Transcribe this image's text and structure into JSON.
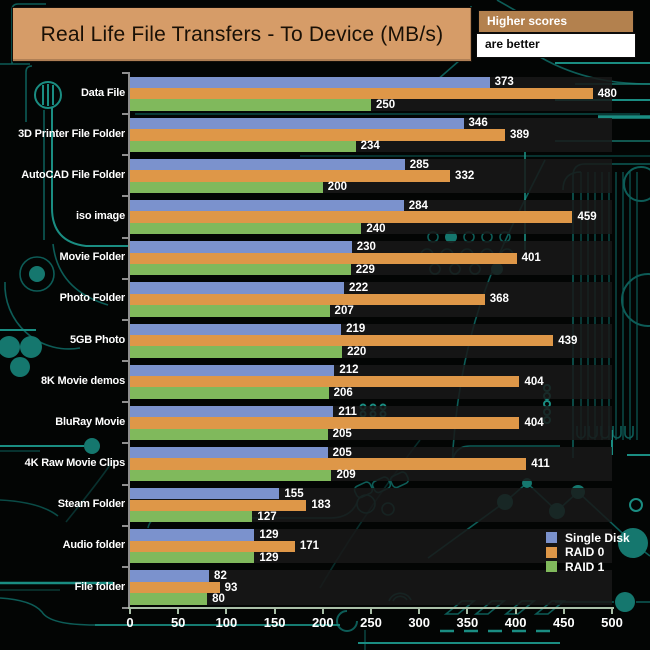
{
  "header": {
    "title": "Real Life File Transfers - To Device (MB/s)",
    "note_line1": "Higher scores",
    "note_line2": "are better"
  },
  "colors": {
    "title_bg": "#d69c68",
    "note_bg": "#b3814e",
    "single_disk": "#7b92cd",
    "raid0": "#de9748",
    "raid1": "#80b95c",
    "circuit": "#0d5c57",
    "circuit_bright": "#1a8d82"
  },
  "chart_data": {
    "type": "bar",
    "orientation": "horizontal",
    "title": "Real Life File Transfers - To Device (MB/s)",
    "categories": [
      "Data File",
      "3D Printer File Folder",
      "AutoCAD File Folder",
      "iso image",
      "Movie Folder",
      "Photo Folder",
      "5GB Photo",
      "8K Movie demos",
      "BluRay Movie",
      "4K Raw Movie Clips",
      "Steam Folder",
      "Audio folder",
      "File folder"
    ],
    "series": [
      {
        "name": "Single Disk",
        "color": "#7b92cd",
        "values": [
          373,
          346,
          285,
          284,
          230,
          222,
          219,
          212,
          211,
          205,
          155,
          129,
          82
        ]
      },
      {
        "name": "RAID 0",
        "color": "#de9748",
        "values": [
          480,
          389,
          332,
          459,
          401,
          368,
          439,
          404,
          404,
          411,
          183,
          171,
          93
        ]
      },
      {
        "name": "RAID 1",
        "color": "#80b95c",
        "values": [
          250,
          234,
          200,
          240,
          229,
          207,
          220,
          206,
          205,
          209,
          127,
          129,
          80
        ]
      }
    ],
    "xlim": [
      0,
      500
    ],
    "xticks": [
      0,
      50,
      100,
      150,
      200,
      250,
      300,
      350,
      400,
      450,
      500
    ],
    "value_labels": true,
    "grid": false,
    "legend_position": "bottom-right"
  }
}
